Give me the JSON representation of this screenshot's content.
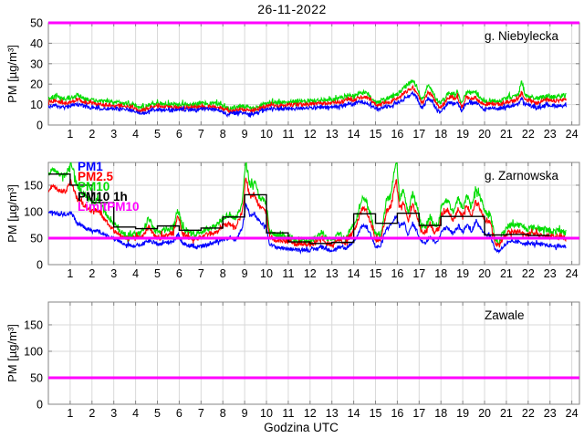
{
  "figure": {
    "title": "26-11-2022",
    "xlabel": "Godzina UTC",
    "ylabel": "PM [µg/m³]"
  },
  "colors": {
    "pm1": "#0000ff",
    "pm25": "#ff0000",
    "pm10": "#00dd00",
    "pm10_1h": "#000000",
    "limit": "#ff00ff",
    "grid": "#d9d9d9",
    "axis": "#858585",
    "text": "#000000",
    "background": "#ffffff"
  },
  "chart_data": [
    {
      "type": "line",
      "station": "g. Niebylecka",
      "xlabel": "",
      "ylabel": "PM [µg/m³]",
      "xlim": [
        0,
        24.35
      ],
      "xticks": [
        1,
        2,
        3,
        4,
        5,
        6,
        7,
        8,
        9,
        10,
        11,
        12,
        13,
        14,
        15,
        16,
        17,
        18,
        19,
        20,
        21,
        22,
        23,
        24
      ],
      "ylim": [
        0,
        50
      ],
      "yticks": [
        0,
        10,
        20,
        30,
        40,
        50
      ],
      "grid": true,
      "limit_line": {
        "label": "LimitPM10",
        "value": 50,
        "color": "#ff00ff"
      },
      "x": [
        0,
        0.3,
        0.7,
        1,
        1.3,
        1.7,
        2,
        2.5,
        3,
        3.5,
        3.9,
        4.15,
        4.45,
        4.7,
        5.2,
        5.7,
        6.2,
        6.7,
        7.2,
        7.7,
        7.95,
        8.1,
        8.35,
        8.7,
        9,
        9.35,
        9.6,
        9.85,
        10.3,
        10.8,
        11.3,
        11.8,
        12.3,
        12.8,
        13.2,
        13.5,
        13.75,
        14,
        14.25,
        14.6,
        14.9,
        15.1,
        15.4,
        15.7,
        16,
        16.3,
        16.55,
        16.7,
        16.85,
        17.05,
        17.15,
        17.4,
        17.55,
        17.75,
        17.95,
        18.15,
        18.35,
        18.6,
        18.75,
        18.95,
        19.15,
        19.4,
        19.6,
        19.8,
        20,
        20.3,
        20.7,
        21,
        21.3,
        21.55,
        21.7,
        21.85,
        22.1,
        22.35,
        22.6,
        22.85,
        23.1,
        23.4,
        23.75
      ],
      "series": [
        {
          "name": "PM10",
          "color": "#00dd00",
          "noise": 1.1,
          "values": [
            13,
            14,
            12.5,
            13,
            14.5,
            13,
            12,
            11.5,
            11,
            11,
            10,
            8.5,
            9,
            10.5,
            10.5,
            10,
            10,
            10.5,
            10.5,
            10.5,
            10,
            8.5,
            8,
            9,
            9,
            8,
            8.5,
            10.5,
            11,
            11,
            11.5,
            11.5,
            12,
            12,
            12.5,
            13.5,
            15,
            14,
            16,
            15.5,
            12.5,
            11,
            12.5,
            13.5,
            15,
            18,
            20.5,
            21.5,
            19.5,
            14,
            12.5,
            19,
            18,
            13,
            11,
            12.5,
            16,
            15,
            16.5,
            10,
            16,
            15.5,
            16,
            13,
            11.5,
            12,
            11.5,
            13,
            14,
            14.5,
            22,
            14.5,
            14,
            13,
            13.5,
            14.5,
            13.5,
            14,
            14.5
          ]
        },
        {
          "name": "PM2.5",
          "color": "#ff0000",
          "noise": 0.9,
          "values": [
            11,
            12,
            10.5,
            11,
            12.5,
            11,
            10.5,
            10,
            9.5,
            9.5,
            8.5,
            7,
            7.5,
            9,
            9,
            8.5,
            8.5,
            9,
            9,
            9,
            8.5,
            7,
            6.5,
            7.5,
            7.5,
            7,
            7.5,
            9,
            9.5,
            9.5,
            10,
            10,
            10.5,
            10.5,
            11,
            11.5,
            13,
            12,
            13.5,
            13.5,
            11,
            9.5,
            11,
            11.5,
            13,
            15.5,
            17.5,
            18.5,
            17,
            12,
            10.5,
            16,
            15.5,
            11,
            9,
            10.5,
            13.5,
            13,
            14,
            8.5,
            13.5,
            13,
            13.5,
            11,
            10,
            10.5,
            10,
            11,
            12,
            12.5,
            16,
            12.5,
            12,
            11,
            11.5,
            12.5,
            11.5,
            12,
            12.5
          ]
        },
        {
          "name": "PM1",
          "color": "#0000ff",
          "noise": 0.9,
          "values": [
            9,
            9.5,
            8.5,
            9,
            10,
            9,
            8.5,
            8,
            8,
            8,
            7,
            5.5,
            6,
            7.5,
            7.5,
            7,
            7.5,
            7.5,
            8,
            7.5,
            7,
            5.5,
            5.5,
            6,
            6,
            5.5,
            6,
            7.5,
            8,
            8,
            8,
            8.5,
            8.5,
            8.5,
            9,
            9.5,
            10.5,
            10,
            11.5,
            11,
            9,
            7.5,
            9,
            9.5,
            11,
            12.5,
            14.5,
            15.5,
            14,
            9.5,
            8,
            13,
            12.5,
            8.5,
            6.5,
            8.5,
            11,
            10.5,
            11.5,
            6.5,
            11,
            10.5,
            11,
            9,
            7.5,
            8.5,
            8,
            9,
            9.5,
            10,
            13,
            10,
            9.5,
            8.5,
            9,
            10,
            9.5,
            9.5,
            9.5
          ]
        }
      ]
    },
    {
      "type": "line",
      "station": "g. Zarnowska",
      "xlabel": "",
      "ylabel": "PM [µg/m³]",
      "xlim": [
        0,
        24.35
      ],
      "xticks": [
        1,
        2,
        3,
        4,
        5,
        6,
        7,
        8,
        9,
        10,
        11,
        12,
        13,
        14,
        15,
        16,
        17,
        18,
        19,
        20,
        21,
        22,
        23,
        24
      ],
      "ylim": [
        0,
        193
      ],
      "yticks": [
        0,
        50,
        100,
        150
      ],
      "grid": true,
      "limit_line": {
        "label": "LimitPM10",
        "value": 50,
        "color": "#ff00ff"
      },
      "legend": [
        {
          "label": "PM1",
          "color": "#0000ff"
        },
        {
          "label": "PM2.5",
          "color": "#ff0000"
        },
        {
          "label": "PM10",
          "color": "#00dd00"
        },
        {
          "label": "PM10 1h",
          "color": "#000000"
        },
        {
          "label": "LimitPM10",
          "color": "#ff00ff"
        }
      ],
      "x": [
        0,
        0.2,
        0.5,
        0.8,
        1.05,
        1.3,
        1.6,
        2,
        2.3,
        2.6,
        3,
        3.3,
        3.6,
        4,
        4.3,
        4.6,
        4.85,
        5.1,
        5.4,
        5.7,
        5.95,
        6.15,
        6.45,
        6.75,
        7.05,
        7.35,
        7.65,
        8,
        8.35,
        8.6,
        8.9,
        9.05,
        9.25,
        9.45,
        9.65,
        9.85,
        10,
        10.15,
        10.45,
        10.75,
        11.05,
        11.35,
        11.65,
        12,
        12.3,
        12.55,
        12.75,
        13.05,
        13.3,
        13.6,
        13.9,
        14.1,
        14.4,
        14.6,
        14.8,
        15,
        15.25,
        15.5,
        15.7,
        15.95,
        16.1,
        16.3,
        16.5,
        16.7,
        16.9,
        17.1,
        17.3,
        17.5,
        17.7,
        17.9,
        18.05,
        18.3,
        18.55,
        18.8,
        19,
        19.2,
        19.4,
        19.6,
        19.8,
        20,
        20.25,
        20.5,
        20.65,
        20.85,
        21.05,
        21.35,
        21.65,
        21.95,
        22.25,
        22.55,
        22.85,
        23.15,
        23.45,
        23.75
      ],
      "series": [
        {
          "name": "PM10",
          "color": "#00dd00",
          "noise": 6,
          "values": [
            170,
            182,
            170,
            168,
            192,
            150,
            135,
            118,
            122,
            100,
            78,
            62,
            55,
            58,
            63,
            88,
            65,
            60,
            66,
            70,
            104,
            70,
            60,
            58,
            62,
            70,
            72,
            90,
            95,
            85,
            120,
            196,
            148,
            158,
            130,
            122,
            112,
            62,
            55,
            52,
            52,
            45,
            48,
            45,
            50,
            63,
            48,
            45,
            60,
            48,
            70,
            85,
            124,
            118,
            90,
            56,
            58,
            120,
            130,
            200,
            125,
            140,
            96,
            135,
            110,
            75,
            70,
            92,
            72,
            80,
            116,
            122,
            100,
            124,
            105,
            133,
            110,
            143,
            127,
            100,
            95,
            48,
            42,
            60,
            72,
            76,
            74,
            68,
            70,
            68,
            66,
            62,
            64,
            60
          ]
        },
        {
          "name": "PM2.5",
          "color": "#ff0000",
          "noise": 5,
          "values": [
            140,
            150,
            140,
            138,
            160,
            126,
            114,
            100,
            104,
            84,
            64,
            53,
            48,
            50,
            53,
            71,
            55,
            52,
            56,
            59,
            94,
            58,
            50,
            49,
            52,
            58,
            60,
            73,
            76,
            70,
            100,
            166,
            126,
            132,
            112,
            105,
            96,
            52,
            46,
            44,
            43,
            38,
            40,
            38,
            42,
            52,
            40,
            38,
            50,
            41,
            58,
            72,
            106,
            100,
            76,
            46,
            49,
            100,
            110,
            160,
            106,
            118,
            82,
            114,
            94,
            63,
            59,
            78,
            61,
            68,
            98,
            103,
            85,
            105,
            89,
            112,
            93,
            120,
            107,
            85,
            80,
            40,
            35,
            50,
            60,
            63,
            62,
            57,
            58,
            56,
            55,
            52,
            53,
            50
          ]
        },
        {
          "name": "PM1",
          "color": "#0000ff",
          "noise": 3.5,
          "values": [
            97,
            100,
            95,
            93,
            98,
            80,
            72,
            63,
            64,
            56,
            48,
            42,
            37,
            36,
            38,
            45,
            40,
            38,
            42,
            44,
            56,
            42,
            35,
            33,
            34,
            38,
            42,
            48,
            51,
            47,
            70,
            115,
            92,
            95,
            82,
            76,
            70,
            38,
            33,
            31,
            30,
            28,
            29,
            27,
            30,
            35,
            29,
            27,
            33,
            29,
            40,
            50,
            75,
            70,
            55,
            33,
            35,
            68,
            75,
            92,
            72,
            80,
            56,
            78,
            64,
            44,
            42,
            54,
            43,
            47,
            66,
            70,
            58,
            72,
            61,
            76,
            63,
            80,
            72,
            58,
            55,
            28,
            25,
            34,
            41,
            43,
            42,
            39,
            40,
            38,
            37,
            35,
            35,
            34
          ]
        }
      ],
      "hourly_pm10": {
        "name": "PM10 1h",
        "color": "#000000",
        "hours": [
          0,
          1,
          2,
          3,
          4,
          5,
          6,
          7,
          8,
          9,
          10,
          11,
          12,
          13,
          14,
          15,
          16,
          17,
          18,
          19,
          20,
          21,
          22
        ],
        "values": [
          171,
          150,
          117,
          71,
          68,
          73,
          65,
          69,
          90,
          132,
          60,
          43,
          40,
          42,
          96,
          78,
          97,
          74,
          91,
          91,
          56,
          57,
          55
        ]
      }
    },
    {
      "type": "line",
      "station": "Zawale",
      "xlabel": "Godzina UTC",
      "ylabel": "PM [µg/m³]",
      "xlim": [
        0,
        24.35
      ],
      "xticks": [
        1,
        2,
        3,
        4,
        5,
        6,
        7,
        8,
        9,
        10,
        11,
        12,
        13,
        14,
        15,
        16,
        17,
        18,
        19,
        20,
        21,
        22,
        23,
        24
      ],
      "ylim": [
        0,
        193
      ],
      "yticks": [
        0,
        50,
        100,
        150
      ],
      "grid": true,
      "limit_line": {
        "label": "LimitPM10",
        "value": 50,
        "color": "#ff00ff"
      },
      "x": [],
      "series": []
    }
  ]
}
